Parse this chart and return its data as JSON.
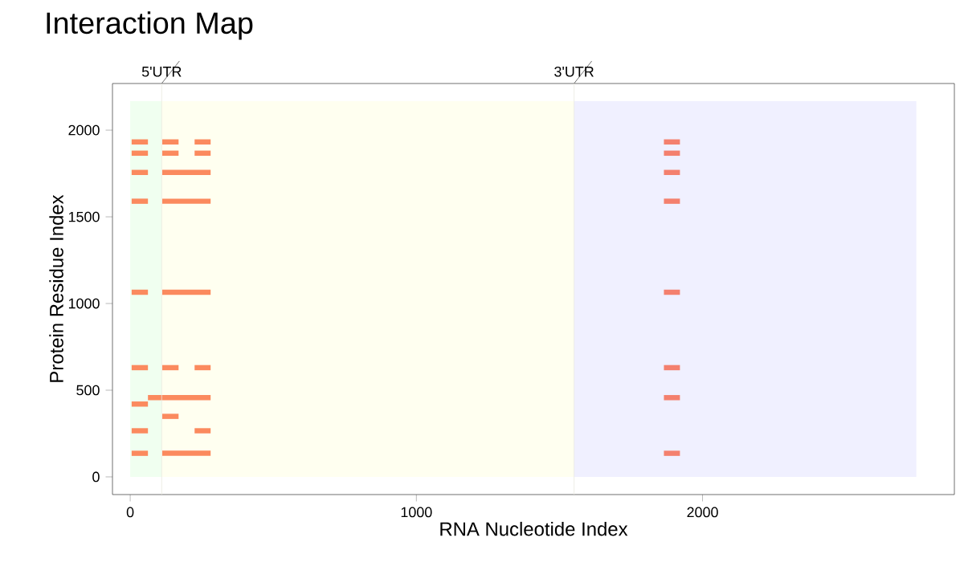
{
  "chart_data": {
    "type": "bar",
    "orientation": "horizontal",
    "title": "Interaction Map",
    "xlabel": "RNA Nucleotide Index",
    "ylabel": "Protein Residue Index",
    "xlim": [
      -62,
      2880
    ],
    "ylim": [
      -102,
      2269
    ],
    "xticks": [
      0,
      1000,
      2000
    ],
    "yticks": [
      0,
      500,
      1000,
      1500,
      2000
    ],
    "ref_lines": [
      {
        "axis": "x",
        "value": 110,
        "label": "5'UTR",
        "color": "#e8e8e0"
      },
      {
        "axis": "x",
        "value": 1551,
        "label": "3'UTR",
        "color": "#e8e8e0"
      }
    ],
    "bands": [
      {
        "axis": "x",
        "from": 0,
        "to": 110,
        "color": "#f0fff0"
      },
      {
        "axis": "x",
        "from": 110,
        "to": 1551,
        "color": "#fffff0"
      },
      {
        "axis": "x",
        "from": 1551,
        "to": 2747,
        "color": "#f0f0ff"
      }
    ],
    "grid": false,
    "x": [
      1932,
      1867,
      1756,
      1590,
      1065,
      630,
      457,
      420,
      349,
      266,
      136
    ],
    "series": [
      {
        "color": "#fb8a5e",
        "base": [
          5,
          5,
          5,
          5,
          5,
          5,
          null,
          5,
          null,
          5,
          5
        ],
        "values": [
          57,
          57,
          57,
          57,
          57,
          57,
          null,
          57,
          null,
          57,
          57
        ]
      },
      {
        "color": "#fb8a5e",
        "base": [
          112,
          112,
          112,
          112,
          112,
          112,
          62,
          null,
          112,
          null,
          112
        ],
        "values": [
          57,
          57,
          169,
          169,
          169,
          57,
          219,
          null,
          57,
          null,
          169
        ]
      },
      {
        "color": "#fb8a5e",
        "base": [
          225,
          225,
          null,
          null,
          null,
          225,
          null,
          null,
          null,
          225,
          null
        ],
        "values": [
          56,
          56,
          null,
          null,
          null,
          56,
          null,
          null,
          null,
          56,
          null
        ]
      },
      {
        "color": "#f4806e",
        "base": [
          1865,
          1865,
          1865,
          1865,
          1865,
          1865,
          1865,
          null,
          null,
          null,
          1865
        ],
        "values": [
          56,
          56,
          56,
          56,
          56,
          56,
          56,
          null,
          null,
          null,
          56
        ]
      }
    ]
  }
}
